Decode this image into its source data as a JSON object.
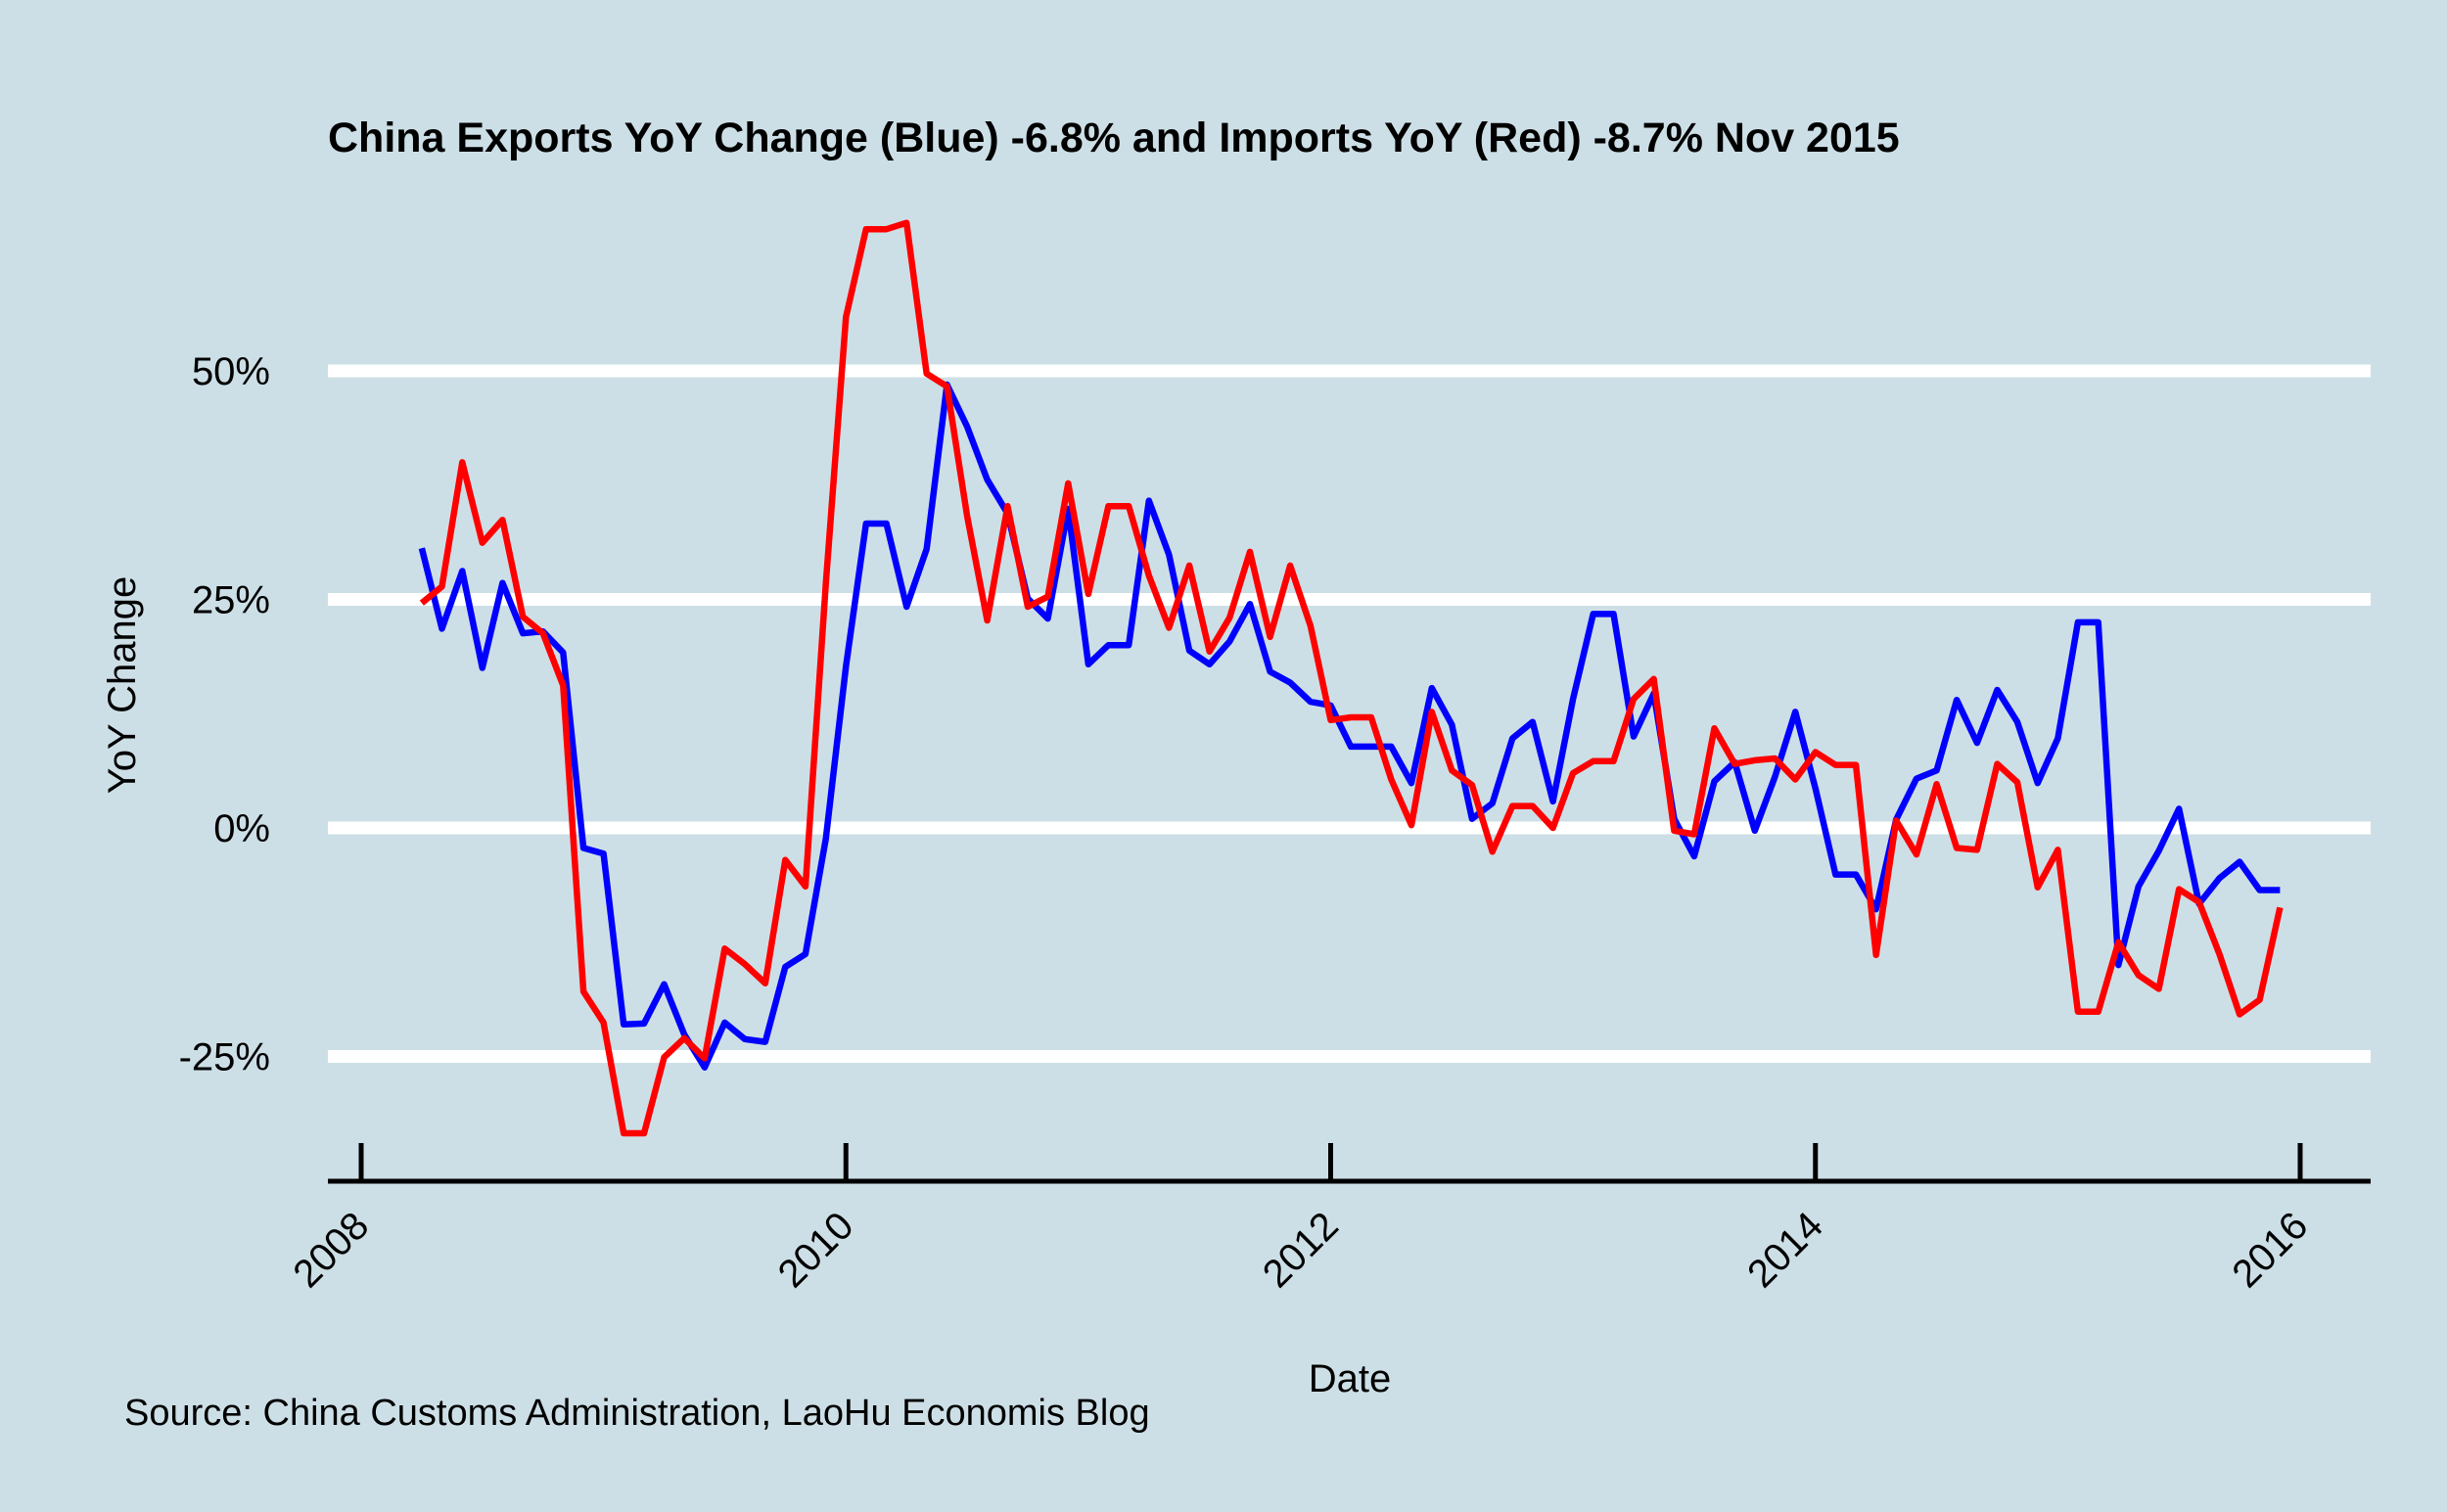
{
  "chart_data": {
    "type": "line",
    "title": "China Exports YoY Change (Blue) -6.8% and Imports YoY (Red) -8.7% Nov 2015",
    "xlabel": "Date",
    "ylabel": "YoY Change",
    "caption": "Source: China Customs Administration, LaoHu Economis Blog",
    "xlim": [
      2008.0,
      2016.0
    ],
    "ylim": [
      -38,
      67
    ],
    "x_ticks": [
      2008,
      2010,
      2012,
      2014,
      2016
    ],
    "x_tick_labels": [
      "2008",
      "2010",
      "2012",
      "2014",
      "2016"
    ],
    "y_ticks": [
      -25,
      0,
      25,
      50
    ],
    "y_tick_labels": [
      "-25%",
      "0%",
      "25%",
      "50%"
    ],
    "grid": "horizontal",
    "legend": "none",
    "series": [
      {
        "color": "#0000ff",
        "points": [
          [
            2008.25,
            30.6
          ],
          [
            2008.333,
            21.8
          ],
          [
            2008.417,
            28.1
          ],
          [
            2008.5,
            17.5
          ],
          [
            2008.583,
            26.8
          ],
          [
            2008.667,
            21.3
          ],
          [
            2008.75,
            21.5
          ],
          [
            2008.833,
            19.2
          ],
          [
            2008.917,
            -2.2
          ],
          [
            2009.0,
            -2.8
          ],
          [
            2009.083,
            -21.5
          ],
          [
            2009.167,
            -21.4
          ],
          [
            2009.25,
            -17.1
          ],
          [
            2009.333,
            -22.6
          ],
          [
            2009.417,
            -26.2
          ],
          [
            2009.5,
            -21.3
          ],
          [
            2009.583,
            -23.1
          ],
          [
            2009.667,
            -23.4
          ],
          [
            2009.75,
            -15.2
          ],
          [
            2009.833,
            -13.8
          ],
          [
            2009.917,
            -1.2
          ],
          [
            2010.0,
            17.7
          ],
          [
            2010.083,
            33.3
          ],
          [
            2010.167,
            33.3
          ],
          [
            2010.25,
            24.2
          ],
          [
            2010.333,
            30.5
          ],
          [
            2010.417,
            48.5
          ],
          [
            2010.5,
            43.9
          ],
          [
            2010.583,
            38.1
          ],
          [
            2010.667,
            34.4
          ],
          [
            2010.75,
            25.1
          ],
          [
            2010.833,
            22.9
          ],
          [
            2010.917,
            34.9
          ],
          [
            2011.0,
            17.9
          ],
          [
            2011.083,
            20.0
          ],
          [
            2011.167,
            20.0
          ],
          [
            2011.25,
            35.8
          ],
          [
            2011.333,
            29.9
          ],
          [
            2011.417,
            19.4
          ],
          [
            2011.5,
            17.9
          ],
          [
            2011.583,
            20.4
          ],
          [
            2011.667,
            24.5
          ],
          [
            2011.75,
            17.1
          ],
          [
            2011.833,
            15.9
          ],
          [
            2011.917,
            13.8
          ],
          [
            2012.0,
            13.4
          ],
          [
            2012.083,
            8.9
          ],
          [
            2012.167,
            8.9
          ],
          [
            2012.25,
            8.9
          ],
          [
            2012.333,
            4.9
          ],
          [
            2012.417,
            15.3
          ],
          [
            2012.5,
            11.3
          ],
          [
            2012.583,
            1.0
          ],
          [
            2012.667,
            2.7
          ],
          [
            2012.75,
            9.8
          ],
          [
            2012.833,
            11.6
          ],
          [
            2012.917,
            2.9
          ],
          [
            2013.0,
            14.1
          ],
          [
            2013.083,
            23.4
          ],
          [
            2013.167,
            23.4
          ],
          [
            2013.25,
            10.0
          ],
          [
            2013.333,
            14.7
          ],
          [
            2013.417,
            1.0
          ],
          [
            2013.5,
            -3.1
          ],
          [
            2013.583,
            5.1
          ],
          [
            2013.667,
            7.2
          ],
          [
            2013.75,
            -0.3
          ],
          [
            2013.833,
            5.6
          ],
          [
            2013.917,
            12.7
          ],
          [
            2014.0,
            4.3
          ],
          [
            2014.083,
            -5.1
          ],
          [
            2014.167,
            -5.1
          ],
          [
            2014.25,
            -8.9
          ],
          [
            2014.333,
            0.9
          ],
          [
            2014.417,
            5.4
          ],
          [
            2014.5,
            6.3
          ],
          [
            2014.583,
            14.0
          ],
          [
            2014.667,
            9.3
          ],
          [
            2014.75,
            15.1
          ],
          [
            2014.833,
            11.6
          ],
          [
            2014.917,
            4.9
          ],
          [
            2015.0,
            9.8
          ],
          [
            2015.083,
            22.5
          ],
          [
            2015.167,
            22.5
          ],
          [
            2015.25,
            -15.0
          ],
          [
            2015.333,
            -6.4
          ],
          [
            2015.417,
            -2.5
          ],
          [
            2015.5,
            2.1
          ],
          [
            2015.583,
            -8.3
          ],
          [
            2015.667,
            -5.5
          ],
          [
            2015.75,
            -3.7
          ],
          [
            2015.833,
            -6.8
          ],
          [
            2015.917,
            -6.8
          ]
        ]
      },
      {
        "color": "#ff0000",
        "points": [
          [
            2008.25,
            24.6
          ],
          [
            2008.333,
            26.4
          ],
          [
            2008.417,
            40.0
          ],
          [
            2008.5,
            31.2
          ],
          [
            2008.583,
            33.7
          ],
          [
            2008.667,
            23.1
          ],
          [
            2008.75,
            21.3
          ],
          [
            2008.833,
            15.6
          ],
          [
            2008.917,
            -17.9
          ],
          [
            2009.0,
            -21.3
          ],
          [
            2009.083,
            -33.4
          ],
          [
            2009.167,
            -33.4
          ],
          [
            2009.25,
            -25.1
          ],
          [
            2009.333,
            -23.0
          ],
          [
            2009.417,
            -25.2
          ],
          [
            2009.5,
            -13.2
          ],
          [
            2009.583,
            -14.9
          ],
          [
            2009.667,
            -17.0
          ],
          [
            2009.75,
            -3.5
          ],
          [
            2009.833,
            -6.4
          ],
          [
            2009.917,
            26.7
          ],
          [
            2010.0,
            55.9
          ],
          [
            2010.083,
            65.5
          ],
          [
            2010.167,
            65.5
          ],
          [
            2010.25,
            66.2
          ],
          [
            2010.333,
            49.7
          ],
          [
            2010.417,
            48.3
          ],
          [
            2010.5,
            34.1
          ],
          [
            2010.583,
            22.7
          ],
          [
            2010.667,
            35.2
          ],
          [
            2010.75,
            24.2
          ],
          [
            2010.833,
            25.3
          ],
          [
            2010.917,
            37.7
          ],
          [
            2011.0,
            25.6
          ],
          [
            2011.083,
            35.2
          ],
          [
            2011.167,
            35.2
          ],
          [
            2011.25,
            27.6
          ],
          [
            2011.333,
            21.9
          ],
          [
            2011.417,
            28.7
          ],
          [
            2011.5,
            19.3
          ],
          [
            2011.583,
            23.0
          ],
          [
            2011.667,
            30.2
          ],
          [
            2011.75,
            20.9
          ],
          [
            2011.833,
            28.7
          ],
          [
            2011.917,
            22.1
          ],
          [
            2012.0,
            11.8
          ],
          [
            2012.083,
            12.1
          ],
          [
            2012.167,
            12.1
          ],
          [
            2012.25,
            5.3
          ],
          [
            2012.333,
            0.3
          ],
          [
            2012.417,
            12.7
          ],
          [
            2012.5,
            6.3
          ],
          [
            2012.583,
            4.7
          ],
          [
            2012.667,
            -2.6
          ],
          [
            2012.75,
            2.4
          ],
          [
            2012.833,
            2.4
          ],
          [
            2012.917,
            0.0
          ],
          [
            2013.0,
            6.0
          ],
          [
            2013.083,
            7.3
          ],
          [
            2013.167,
            7.3
          ],
          [
            2013.25,
            14.1
          ],
          [
            2013.333,
            16.3
          ],
          [
            2013.417,
            -0.3
          ],
          [
            2013.5,
            -0.7
          ],
          [
            2013.583,
            10.9
          ],
          [
            2013.667,
            7.0
          ],
          [
            2013.75,
            7.4
          ],
          [
            2013.833,
            7.6
          ],
          [
            2013.917,
            5.3
          ],
          [
            2014.0,
            8.3
          ],
          [
            2014.083,
            6.9
          ],
          [
            2014.167,
            6.9
          ],
          [
            2014.25,
            -13.9
          ],
          [
            2014.333,
            0.8
          ],
          [
            2014.417,
            -2.9
          ],
          [
            2014.5,
            4.8
          ],
          [
            2014.583,
            -2.2
          ],
          [
            2014.667,
            -2.4
          ],
          [
            2014.75,
            7.0
          ],
          [
            2014.833,
            5.0
          ],
          [
            2014.917,
            -6.5
          ],
          [
            2015.0,
            -2.4
          ],
          [
            2015.083,
            -20.1
          ],
          [
            2015.167,
            -20.1
          ],
          [
            2015.25,
            -12.5
          ],
          [
            2015.333,
            -16.1
          ],
          [
            2015.417,
            -17.6
          ],
          [
            2015.5,
            -6.7
          ],
          [
            2015.583,
            -8.1
          ],
          [
            2015.667,
            -13.8
          ],
          [
            2015.75,
            -20.4
          ],
          [
            2015.833,
            -18.8
          ],
          [
            2015.917,
            -8.7
          ]
        ]
      }
    ]
  }
}
